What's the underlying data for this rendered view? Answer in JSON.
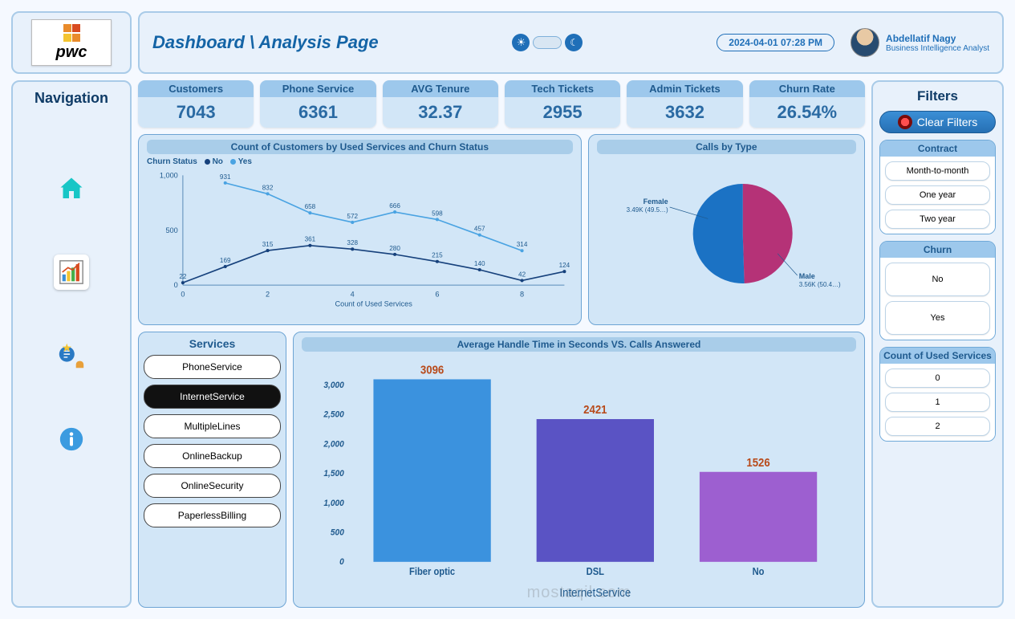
{
  "header": {
    "title": "Dashboard \\ Analysis Page",
    "timestamp": "2024-04-01 07:28 PM",
    "user_name": "Abdellatif Nagy",
    "user_role": "Business Intelligence Analyst"
  },
  "nav": {
    "title": "Navigation"
  },
  "kpis": [
    {
      "label": "Customers",
      "value": "7043"
    },
    {
      "label": "Phone Service",
      "value": "6361"
    },
    {
      "label": "AVG Tenure",
      "value": "32.37"
    },
    {
      "label": "Tech Tickets",
      "value": "2955"
    },
    {
      "label": "Admin Tickets",
      "value": "3632"
    },
    {
      "label": "Churn Rate",
      "value": "26.54%"
    }
  ],
  "line_chart": {
    "title": "Count of Customers by Used Services and Churn Status",
    "legend_label": "Churn Status",
    "series_labels": [
      "No",
      "Yes"
    ],
    "series_colors": [
      "#16417c",
      "#4aa3e2"
    ],
    "x_label": "Count of Used Services",
    "x_ticks": [
      "0",
      "2",
      "4",
      "6",
      "8"
    ],
    "y_ticks": [
      "0",
      "500",
      "1,000"
    ],
    "ymax": 1000,
    "no": [
      22,
      169,
      315,
      361,
      328,
      280,
      215,
      140,
      42,
      124
    ],
    "yes": [
      0,
      931,
      832,
      658,
      572,
      666,
      598,
      457,
      314,
      0
    ],
    "no_labels": [
      "22",
      "169",
      "315",
      "361",
      "328",
      "280",
      "215",
      "140",
      "42",
      "124"
    ],
    "yes_labels": [
      "",
      "931",
      "832",
      "658",
      "572",
      "666",
      "598",
      "457",
      "314",
      ""
    ],
    "background": "#d2e6f7"
  },
  "pie_chart": {
    "title": "Calls by Type",
    "slices": [
      {
        "label": "Female",
        "sub": "3.49K (49.5…)",
        "value": 49.5,
        "color": "#b53277"
      },
      {
        "label": "Male",
        "sub": "3.56K (50.4…)",
        "value": 50.5,
        "color": "#1b72c4"
      }
    ]
  },
  "services": {
    "title": "Services",
    "items": [
      "PhoneService",
      "InternetService",
      "MultipleLines",
      "OnlineBackup",
      "OnlineSecurity",
      "PaperlessBilling"
    ],
    "active_index": 1
  },
  "bar_chart": {
    "title": "Average Handle Time in Seconds VS. Calls Answered",
    "x_label": "InternetService",
    "y_ticks": [
      "0",
      "500",
      "1,000",
      "1,500",
      "2,000",
      "2,500",
      "3,000"
    ],
    "ymax": 3200,
    "bars": [
      {
        "cat": "Fiber optic",
        "value": 3096,
        "color": "#3b92de"
      },
      {
        "cat": "DSL",
        "value": 2421,
        "color": "#5a53c4"
      },
      {
        "cat": "No",
        "value": 1526,
        "color": "#9d5fd0"
      }
    ],
    "label_color": "#b84a1a"
  },
  "filters": {
    "title": "Filters",
    "clear_label": "Clear Filters",
    "groups": [
      {
        "title": "Contract",
        "options": [
          "Month-to-month",
          "One year",
          "Two year"
        ],
        "tall": false
      },
      {
        "title": "Churn",
        "options": [
          "No",
          "Yes"
        ],
        "tall": true
      },
      {
        "title": "Count of Used Services",
        "options": [
          "0",
          "1",
          "2"
        ],
        "tall": false
      }
    ]
  },
  "watermark": "mostaqil.com"
}
